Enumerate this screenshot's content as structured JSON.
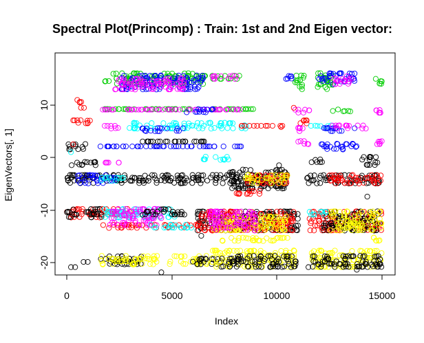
{
  "chart_data": {
    "type": "scatter",
    "title": "Spectral Plot(Princomp) : Train: 1st and 2nd Eigen vector:",
    "xlabel": "Index",
    "ylabel": "EigenVectors[, 1]",
    "xlim": [
      0,
      15000
    ],
    "ylim": [
      -22,
      18
    ],
    "x_ticks": [
      0,
      5000,
      10000,
      15000
    ],
    "x_tick_labels": [
      "0",
      "5000",
      "10000",
      "15000"
    ],
    "y_ticks": [
      -20,
      -10,
      0,
      10
    ],
    "y_tick_labels": [
      "-20",
      "-10",
      "0",
      "10"
    ],
    "grid": false,
    "legend": "none",
    "marker": "open-circle",
    "colors": {
      "black": "#000000",
      "red": "#ff0000",
      "green": "#00cd00",
      "blue": "#0000ff",
      "cyan": "#00ffff",
      "magenta": "#ff00ff",
      "yellow": "#ffff00"
    },
    "clusters": [
      {
        "color": "green",
        "x": [
          1800,
          6600
        ],
        "y": [
          14,
          16.5
        ]
      },
      {
        "color": "blue",
        "x": [
          2600,
          6500
        ],
        "y": [
          13,
          16
        ]
      },
      {
        "color": "magenta",
        "x": [
          2300,
          5800
        ],
        "y": [
          13,
          15.5
        ]
      },
      {
        "color": "green",
        "x": [
          6900,
          8300
        ],
        "y": [
          15,
          16
        ]
      },
      {
        "color": "magenta",
        "x": [
          6900,
          8200
        ],
        "y": [
          15,
          16
        ]
      },
      {
        "color": "green",
        "x": [
          10800,
          11300
        ],
        "y": [
          13,
          16
        ]
      },
      {
        "color": "blue",
        "x": [
          10400,
          10700
        ],
        "y": [
          15,
          16
        ]
      },
      {
        "color": "green",
        "x": [
          11900,
          12700
        ],
        "y": [
          13,
          16.5
        ]
      },
      {
        "color": "blue",
        "x": [
          12000,
          13800
        ],
        "y": [
          14,
          16.5
        ]
      },
      {
        "color": "magenta",
        "x": [
          12700,
          13600
        ],
        "y": [
          14,
          16
        ]
      },
      {
        "color": "green",
        "x": [
          14700,
          15000
        ],
        "y": [
          14,
          16
        ]
      },
      {
        "color": "red",
        "x": [
          0,
          1200
        ],
        "y": [
          6.5,
          7.5
        ]
      },
      {
        "color": "red",
        "x": [
          600,
          1000
        ],
        "y": [
          9.5,
          11
        ]
      },
      {
        "color": "green",
        "x": [
          1700,
          8900
        ],
        "y": [
          9,
          9.5
        ]
      },
      {
        "color": "magenta",
        "x": [
          1700,
          8900
        ],
        "y": [
          9,
          9.3
        ]
      },
      {
        "color": "blue",
        "x": [
          5700,
          7200
        ],
        "y": [
          8.6,
          9.6
        ]
      },
      {
        "color": "magenta",
        "x": [
          1800,
          2600
        ],
        "y": [
          5.5,
          6.5
        ]
      },
      {
        "color": "cyan",
        "x": [
          2800,
          6000
        ],
        "y": [
          5.5,
          7
        ]
      },
      {
        "color": "blue",
        "x": [
          3500,
          5600
        ],
        "y": [
          5,
          6
        ]
      },
      {
        "color": "cyan",
        "x": [
          6100,
          8600
        ],
        "y": [
          5.5,
          7
        ]
      },
      {
        "color": "red",
        "x": [
          8300,
          10300
        ],
        "y": [
          5.8,
          6.3
        ]
      },
      {
        "color": "magenta",
        "x": [
          10800,
          11600
        ],
        "y": [
          8.5,
          9.5
        ]
      },
      {
        "color": "red",
        "x": [
          11000,
          11500
        ],
        "y": [
          6.5,
          7.5
        ]
      },
      {
        "color": "magenta",
        "x": [
          10900,
          11300
        ],
        "y": [
          5,
          6
        ]
      },
      {
        "color": "cyan",
        "x": [
          11600,
          12600
        ],
        "y": [
          5.5,
          6.5
        ]
      },
      {
        "color": "blue",
        "x": [
          12200,
          13700
        ],
        "y": [
          5,
          6
        ]
      },
      {
        "color": "green",
        "x": [
          12600,
          13500
        ],
        "y": [
          8.8,
          9.5
        ]
      },
      {
        "color": "magenta",
        "x": [
          12600,
          14300
        ],
        "y": [
          5.5,
          6.5
        ]
      },
      {
        "color": "magenta",
        "x": [
          14700,
          15000
        ],
        "y": [
          8.5,
          9.5
        ]
      },
      {
        "color": "black",
        "x": [
          0,
          900
        ],
        "y": [
          1.5,
          3
        ]
      },
      {
        "color": "blue",
        "x": [
          1600,
          8400
        ],
        "y": [
          1.8,
          2.4
        ]
      },
      {
        "color": "black",
        "x": [
          3600,
          7000
        ],
        "y": [
          2.8,
          3.3
        ]
      },
      {
        "color": "magenta",
        "x": [
          10800,
          11500
        ],
        "y": [
          2.5,
          3.5
        ]
      },
      {
        "color": "blue",
        "x": [
          12100,
          14000
        ],
        "y": [
          1.5,
          3
        ]
      },
      {
        "color": "magenta",
        "x": [
          14700,
          15000
        ],
        "y": [
          2.5,
          3.5
        ]
      },
      {
        "color": "black",
        "x": [
          0,
          1400
        ],
        "y": [
          -1.5,
          -0.5
        ]
      },
      {
        "color": "magenta",
        "x": [
          1600,
          2500
        ],
        "y": [
          -1.3,
          -0.7
        ]
      },
      {
        "color": "cyan",
        "x": [
          6400,
          7700
        ],
        "y": [
          -0.5,
          0.5
        ]
      },
      {
        "color": "black",
        "x": [
          11600,
          12200
        ],
        "y": [
          -1,
          0
        ]
      },
      {
        "color": "black",
        "x": [
          14000,
          14800
        ],
        "y": [
          -1.5,
          0.5
        ]
      },
      {
        "color": "black",
        "x": [
          0,
          9500
        ],
        "y": [
          -5,
          -3
        ]
      },
      {
        "color": "blue",
        "x": [
          500,
          2300
        ],
        "y": [
          -5,
          -3
        ]
      },
      {
        "color": "cyan",
        "x": [
          1500,
          2800
        ],
        "y": [
          -4.5,
          -3.5
        ]
      },
      {
        "color": "black",
        "x": [
          7700,
          10500
        ],
        "y": [
          -6,
          -2
        ]
      },
      {
        "color": "red",
        "x": [
          8500,
          10500
        ],
        "y": [
          -5,
          -3
        ]
      },
      {
        "color": "yellow",
        "x": [
          8500,
          10500
        ],
        "y": [
          -5,
          -3
        ]
      },
      {
        "color": "black",
        "x": [
          11300,
          15000
        ],
        "y": [
          -5,
          -3
        ]
      },
      {
        "color": "red",
        "x": [
          12500,
          15000
        ],
        "y": [
          -5,
          -3
        ]
      },
      {
        "color": "red",
        "x": [
          7900,
          9300
        ],
        "y": [
          -7,
          -6
        ]
      },
      {
        "color": "red",
        "x": [
          0,
          1700
        ],
        "y": [
          -10.5,
          -9.5
        ]
      },
      {
        "color": "red",
        "x": [
          0,
          1700
        ],
        "y": [
          -11.5,
          -10.5
        ]
      },
      {
        "color": "black",
        "x": [
          0,
          1700
        ],
        "y": [
          -11.5,
          -9.5
        ]
      },
      {
        "color": "red",
        "x": [
          1700,
          8900
        ],
        "y": [
          -13.5,
          -12.5
        ]
      },
      {
        "color": "red",
        "x": [
          1700,
          3000
        ],
        "y": [
          -11,
          -9.5
        ]
      },
      {
        "color": "cyan",
        "x": [
          1700,
          5300
        ],
        "y": [
          -11.5,
          -9.5
        ]
      },
      {
        "color": "magenta",
        "x": [
          2000,
          4500
        ],
        "y": [
          -13,
          -9.5
        ]
      },
      {
        "color": "black",
        "x": [
          3600,
          5600
        ],
        "y": [
          -11,
          -9.5
        ]
      },
      {
        "color": "cyan",
        "x": [
          4000,
          6000
        ],
        "y": [
          -13.5,
          -12.5
        ]
      },
      {
        "color": "black",
        "x": [
          6200,
          11000
        ],
        "y": [
          -14,
          -10
        ]
      },
      {
        "color": "red",
        "x": [
          6200,
          10800
        ],
        "y": [
          -14,
          -10
        ]
      },
      {
        "color": "yellow",
        "x": [
          7000,
          10500
        ],
        "y": [
          -14,
          -11
        ]
      },
      {
        "color": "magenta",
        "x": [
          6800,
          9000
        ],
        "y": [
          -14,
          -10
        ]
      },
      {
        "color": "red",
        "x": [
          11500,
          15000
        ],
        "y": [
          -14,
          -10
        ]
      },
      {
        "color": "black",
        "x": [
          12200,
          15000
        ],
        "y": [
          -14,
          -10
        ]
      },
      {
        "color": "cyan",
        "x": [
          11500,
          12500
        ],
        "y": [
          -11,
          -10
        ]
      },
      {
        "color": "yellow",
        "x": [
          12500,
          15000
        ],
        "y": [
          -14,
          -10
        ]
      },
      {
        "color": "yellow",
        "x": [
          7200,
          10500
        ],
        "y": [
          -16,
          -15
        ]
      },
      {
        "color": "yellow",
        "x": [
          14500,
          15000
        ],
        "y": [
          -16,
          -15
        ]
      },
      {
        "color": "black",
        "x": [
          1600,
          3700
        ],
        "y": [
          -20.5,
          -18.5
        ]
      },
      {
        "color": "yellow",
        "x": [
          1600,
          4300
        ],
        "y": [
          -20.5,
          -18.5
        ]
      },
      {
        "color": "yellow",
        "x": [
          4800,
          6700
        ],
        "y": [
          -20.5,
          -18.5
        ]
      },
      {
        "color": "black",
        "x": [
          5900,
          7400
        ],
        "y": [
          -20.5,
          -19
        ]
      },
      {
        "color": "yellow",
        "x": [
          6900,
          10900
        ],
        "y": [
          -21,
          -17.5
        ]
      },
      {
        "color": "black",
        "x": [
          7300,
          10900
        ],
        "y": [
          -21,
          -18.5
        ]
      },
      {
        "color": "yellow",
        "x": [
          11600,
          15000
        ],
        "y": [
          -21,
          -17.5
        ]
      },
      {
        "color": "black",
        "x": [
          11700,
          15000
        ],
        "y": [
          -21,
          -18.5
        ]
      }
    ],
    "outliers": [
      {
        "color": "black",
        "x": 200,
        "y": -21
      },
      {
        "color": "black",
        "x": 400,
        "y": -21
      },
      {
        "color": "black",
        "x": 800,
        "y": -20
      },
      {
        "color": "black",
        "x": 1000,
        "y": -20
      },
      {
        "color": "red",
        "x": 500,
        "y": 11
      },
      {
        "color": "cyan",
        "x": 200,
        "y": 1
      },
      {
        "color": "red",
        "x": 300,
        "y": 2.5
      },
      {
        "color": "black",
        "x": 4500,
        "y": -22
      },
      {
        "color": "red",
        "x": 10800,
        "y": 9.5
      },
      {
        "color": "black",
        "x": 11500,
        "y": -21
      },
      {
        "color": "black",
        "x": 13800,
        "y": -21.5
      },
      {
        "color": "black",
        "x": 6400,
        "y": -15
      },
      {
        "color": "black",
        "x": 10100,
        "y": -1.5
      },
      {
        "color": "red",
        "x": 10200,
        "y": 5.8
      },
      {
        "color": "black",
        "x": 14300,
        "y": -7.5
      }
    ]
  }
}
